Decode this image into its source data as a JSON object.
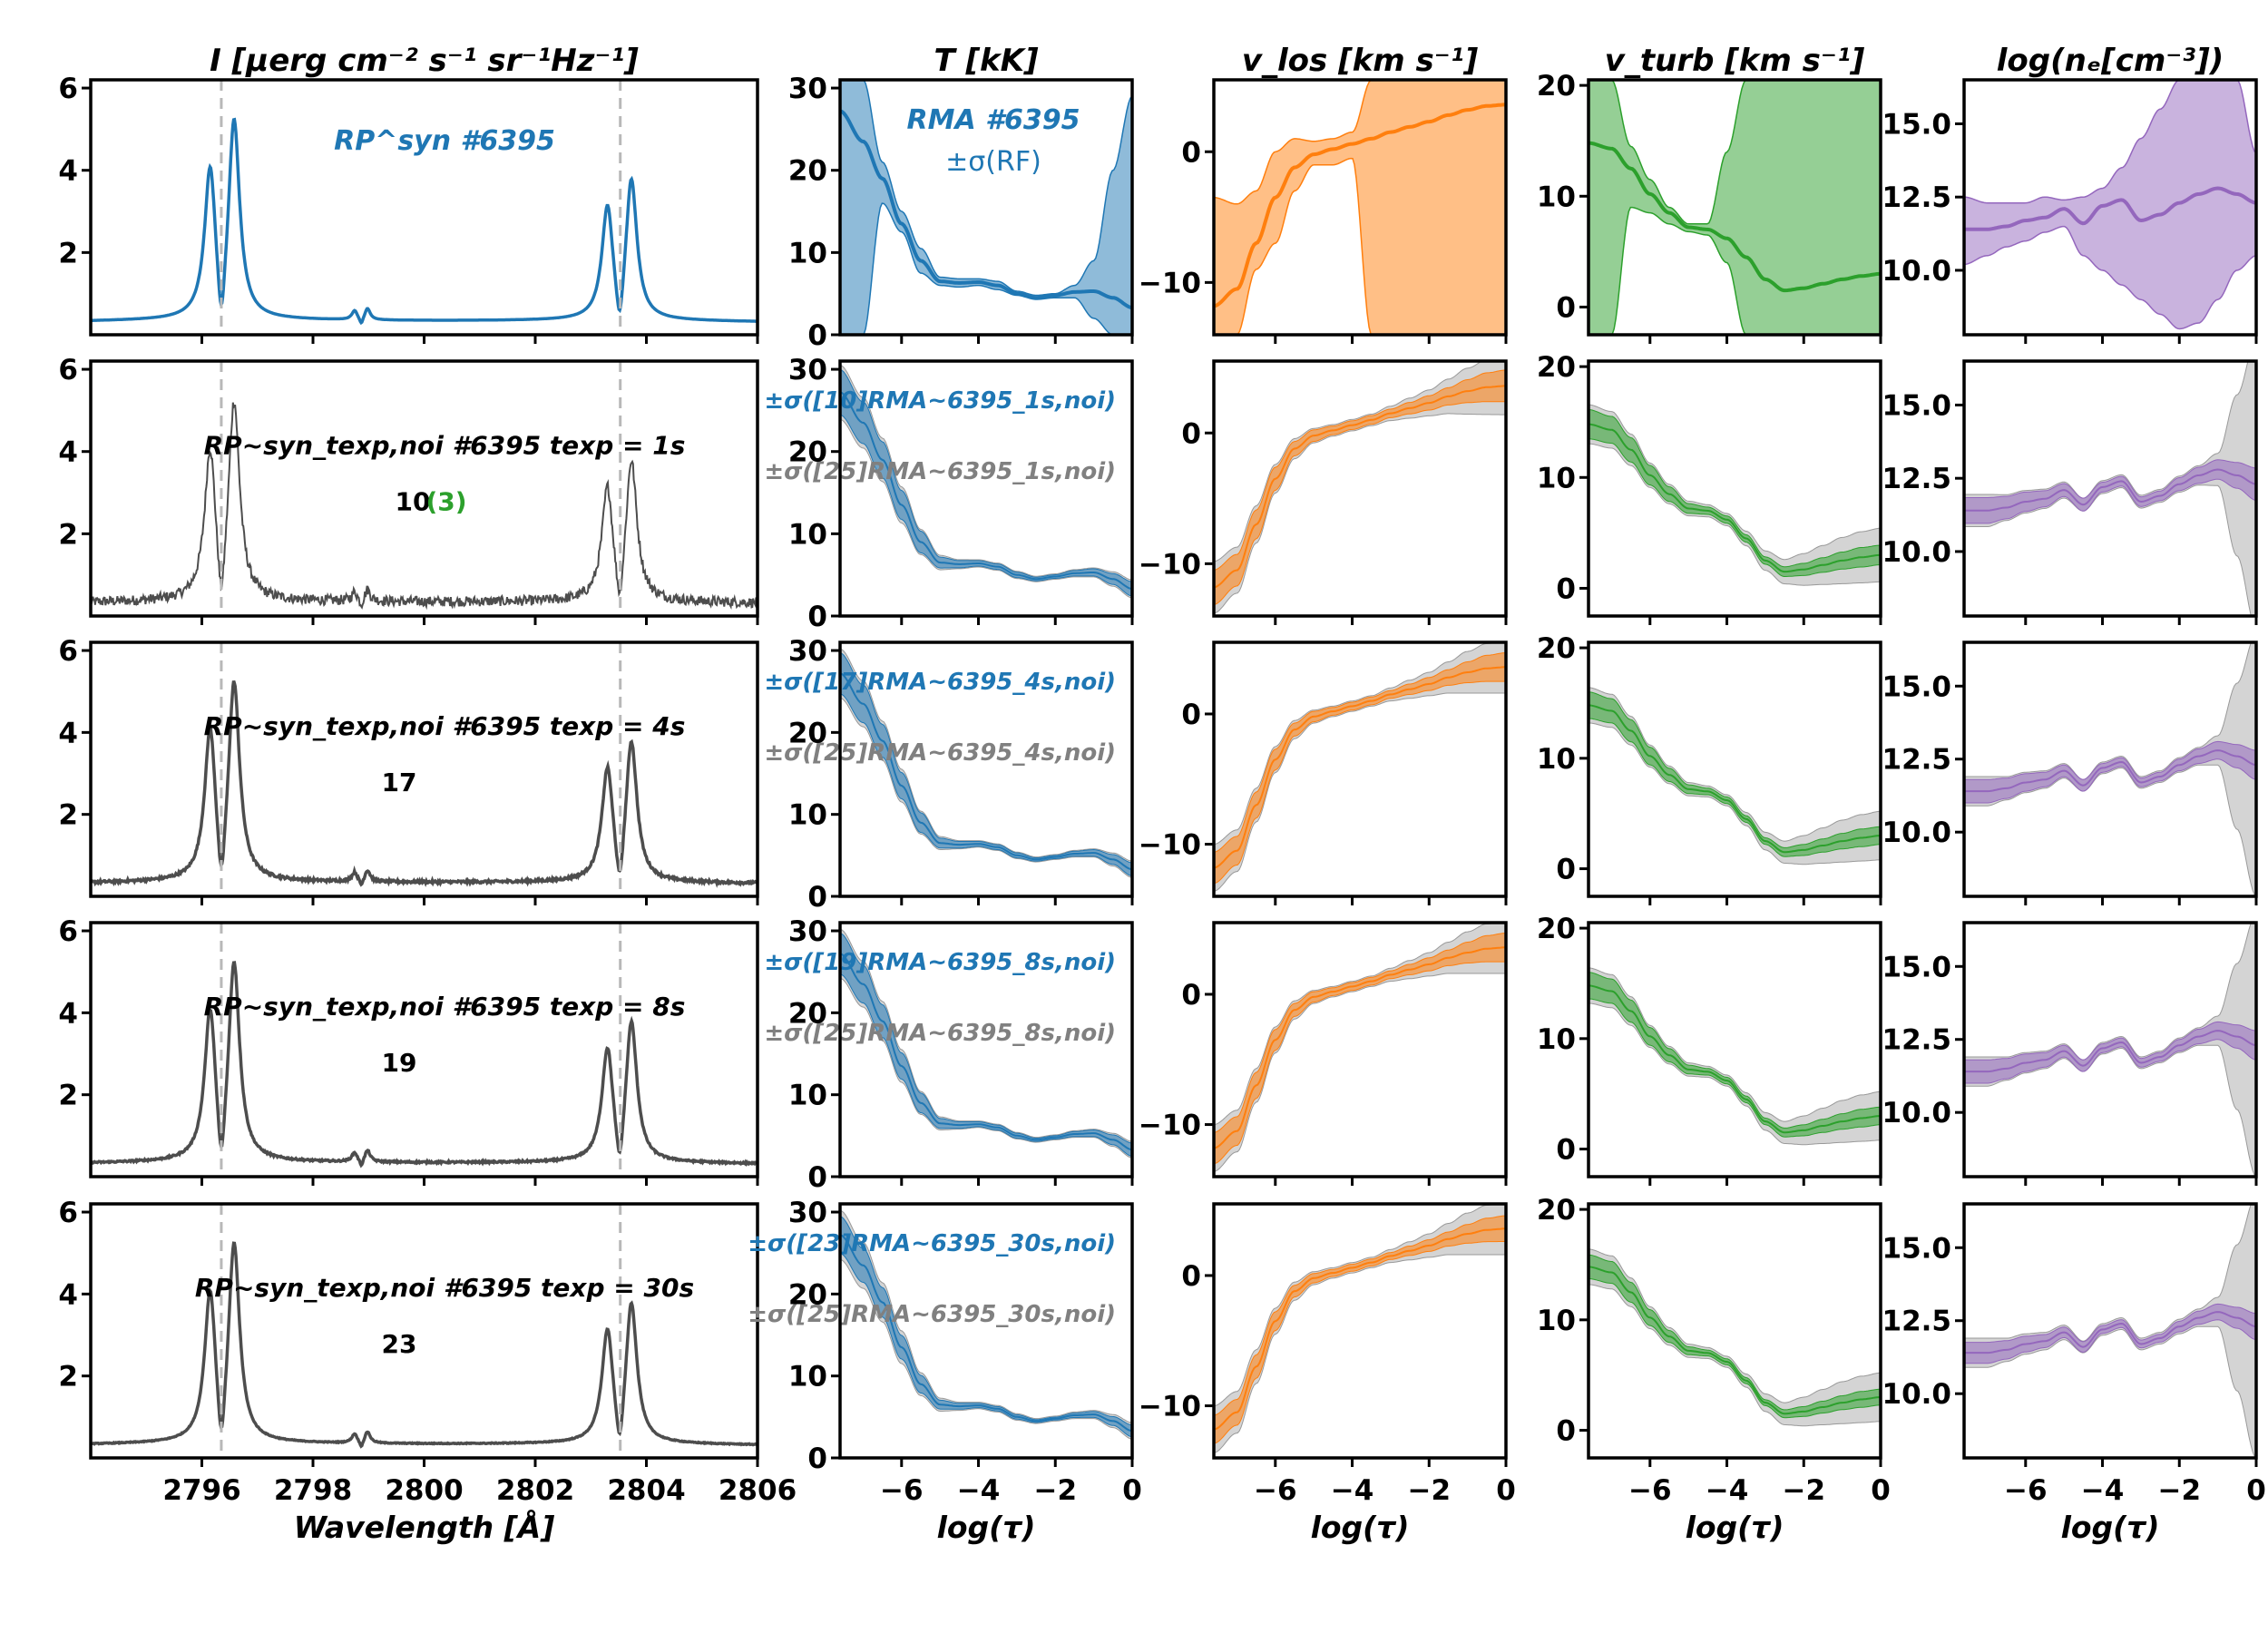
{
  "chart_data": {
    "type": "line",
    "description_layout": "5 rows x 5 columns of line plots with shaded uncertainty bands",
    "colors": {
      "blue": "#1f77b4",
      "orange": "#ff7f0e",
      "green": "#2ca02c",
      "purple": "#9467bd",
      "gray": "#4d4d4d",
      "band_gray": "#b0b0b0",
      "label_gray": "#808080",
      "dash_gray": "#b8b8b8"
    },
    "columns": [
      {
        "key": "I",
        "title": "I [μerg cm⁻² s⁻¹ sr⁻¹Hz⁻¹]",
        "xlabel": "Wavelength [Å]",
        "xlim": [
          2794,
          2806
        ],
        "ylim": [
          0,
          6.2
        ],
        "xticks": [
          2796,
          2798,
          2800,
          2802,
          2804,
          2806
        ],
        "xtick_labels": [
          "2796",
          "2798",
          "2800",
          "2802",
          "2804",
          "2806"
        ],
        "yticks": [
          2,
          4,
          6
        ],
        "ytick_labels": [
          "2",
          "4",
          "6"
        ],
        "dashed_lines_x": [
          2796.35,
          2803.53
        ]
      },
      {
        "key": "T",
        "title": "T [kK]",
        "xlabel": "log(τ)",
        "xlim": [
          -7.6,
          0
        ],
        "ylim": [
          0,
          31
        ],
        "xticks": [
          -6,
          -4,
          -2,
          0
        ],
        "xtick_labels": [
          "−6",
          "−4",
          "−2",
          "0"
        ],
        "yticks": [
          0,
          10,
          20,
          30
        ],
        "ytick_labels": [
          "0",
          "10",
          "20",
          "30"
        ]
      },
      {
        "key": "vlos",
        "title": "v_los [km s⁻¹]",
        "xlabel": "log(τ)",
        "xlim": [
          -7.6,
          0
        ],
        "ylim": [
          -14,
          5.5
        ],
        "xticks": [
          -6,
          -4,
          -2,
          0
        ],
        "xtick_labels": [
          "−6",
          "−4",
          "−2",
          "0"
        ],
        "yticks": [
          -10,
          0
        ],
        "ytick_labels": [
          "−10",
          "0"
        ]
      },
      {
        "key": "vturb",
        "title": "v_turb [km s⁻¹]",
        "xlabel": "log(τ)",
        "xlim": [
          -7.6,
          0
        ],
        "ylim": [
          -2.5,
          20.5
        ],
        "xticks": [
          -6,
          -4,
          -2,
          0
        ],
        "xtick_labels": [
          "−6",
          "−4",
          "−2",
          "0"
        ],
        "yticks": [
          0,
          10,
          20
        ],
        "ytick_labels": [
          "0",
          "10",
          "20"
        ]
      },
      {
        "key": "ne",
        "title": "log(nₑ[cm⁻³])",
        "xlabel": "log(τ)",
        "xlim": [
          -7.6,
          0
        ],
        "ylim": [
          7.8,
          16.5
        ],
        "xticks": [
          -6,
          -4,
          -2,
          0
        ],
        "xtick_labels": [
          "−6",
          "−4",
          "−2",
          "0"
        ],
        "yticks": [
          10.0,
          12.5,
          15.0
        ],
        "ytick_labels": [
          "10.0",
          "12.5",
          "15.0"
        ]
      }
    ],
    "rows": [
      {
        "profile_label": "RP^syn #6395",
        "count": "",
        "count_extra": "",
        "t_label": "RMA #6395",
        "t_label2": "±σ(RF)",
        "noisy": false
      },
      {
        "profile_label": "RP~syn_texp,noi #6395 texp = 1s",
        "count": "10",
        "count_extra": "(3)",
        "t_label": "±σ([10]RMA~6395_1s,noi)",
        "t_label2": "±σ([25]RMA~6395_1s,noi)",
        "noisy": true,
        "noise_level": 0.12
      },
      {
        "profile_label": "RP~syn_texp,noi #6395 texp = 4s",
        "count": "17",
        "count_extra": "",
        "t_label": "±σ([17]RMA~6395_4s,noi)",
        "t_label2": "±σ([25]RMA~6395_4s,noi)",
        "noisy": true,
        "noise_level": 0.03
      },
      {
        "profile_label": "RP~syn_texp,noi #6395 texp = 8s",
        "count": "19",
        "count_extra": "",
        "t_label": "±σ([19]RMA~6395_8s,noi)",
        "t_label2": "±σ([25]RMA~6395_8s,noi)",
        "noisy": true,
        "noise_level": 0.02
      },
      {
        "profile_label": "RP~syn_texp,noi #6395 texp = 30s",
        "count": "23",
        "count_extra": "",
        "t_label": "±σ([23]RMA~6395_30s,noi)",
        "t_label2": "±σ([25]RMA~6395_30s,noi)",
        "noisy": true,
        "noise_level": 0.01
      }
    ],
    "spectrum": {
      "continuum": 0.25,
      "lines": [
        {
          "center": 2796.15,
          "amp": 3.6,
          "width": 0.12
        },
        {
          "center": 2796.58,
          "amp": 4.8,
          "width": 0.12
        },
        {
          "center": 2796.35,
          "amp": -1.6,
          "width": 0.08
        },
        {
          "center": 2803.3,
          "amp": 2.7,
          "width": 0.12
        },
        {
          "center": 2803.73,
          "amp": 3.4,
          "width": 0.12
        },
        {
          "center": 2803.52,
          "amp": -1.2,
          "width": 0.08
        },
        {
          "center": 2798.75,
          "amp": 0.22,
          "width": 0.06
        },
        {
          "center": 2798.98,
          "amp": 0.28,
          "width": 0.06
        },
        {
          "center": 2798.87,
          "amp": -0.18,
          "width": 0.04
        }
      ],
      "wings": [
        {
          "center": 2796.35,
          "amp": 0.09,
          "width": 4.0
        },
        {
          "center": 2803.53,
          "amp": 0.07,
          "width": 4.0
        }
      ]
    },
    "profiles": {
      "tau": [
        -7.6,
        -7.0,
        -6.5,
        -6.0,
        -5.5,
        -5.0,
        -4.5,
        -4.0,
        -3.5,
        -3.0,
        -2.5,
        -2.0,
        -1.5,
        -1.0,
        -0.5,
        0.0
      ],
      "T": {
        "values": [
          27.2,
          23.5,
          19.0,
          13.5,
          9.0,
          6.5,
          6.3,
          6.4,
          6.0,
          5.0,
          4.5,
          4.8,
          5.2,
          5.3,
          4.5,
          3.3
        ],
        "row1_band_lo": [
          0,
          0,
          16.0,
          12.5,
          7.5,
          6.0,
          5.8,
          6.0,
          5.5,
          4.8,
          4.3,
          4.5,
          4.5,
          2.0,
          0,
          0
        ],
        "row1_band_hi": [
          31,
          31,
          21.0,
          15.0,
          10.5,
          7.0,
          6.8,
          6.8,
          6.5,
          5.3,
          4.8,
          5.0,
          6.0,
          9.0,
          20.0,
          29.0
        ],
        "band_narrow": [
          2.5,
          2.3,
          2.0,
          1.6,
          1.2,
          0.6,
          0.4,
          0.3,
          0.3,
          0.3,
          0.2,
          0.2,
          0.3,
          0.4,
          0.6,
          0.8
        ],
        "band_wide": [
          3.0,
          2.8,
          2.4,
          2.0,
          1.4,
          0.8,
          0.5,
          0.4,
          0.4,
          0.4,
          0.3,
          0.3,
          0.4,
          0.5,
          0.8,
          1.0
        ]
      },
      "vlos": {
        "values": [
          -11.8,
          -10.5,
          -7.0,
          -3.5,
          -1.2,
          -0.2,
          0.2,
          0.6,
          1.0,
          1.5,
          1.9,
          2.3,
          2.8,
          3.2,
          3.5,
          3.6
        ],
        "row1_band_lo": [
          -14,
          -14,
          -9.0,
          -7.0,
          -3.0,
          -1.0,
          -1.0,
          -0.5,
          -14,
          -14,
          -14,
          -14,
          -14,
          -14,
          -14,
          -14
        ],
        "row1_band_hi": [
          -3.5,
          -4.0,
          -3.0,
          0.0,
          1.0,
          0.8,
          1.0,
          1.5,
          5.5,
          5.5,
          5.5,
          5.5,
          5.5,
          5.5,
          5.5,
          5.5
        ],
        "band_narrow": [
          1.2,
          1.1,
          1.0,
          0.8,
          0.5,
          0.4,
          0.3,
          0.3,
          0.3,
          0.3,
          0.4,
          0.5,
          0.6,
          0.8,
          1.0,
          1.1
        ],
        "band_wide": [
          1.8,
          1.6,
          1.3,
          1.0,
          0.7,
          0.5,
          0.4,
          0.4,
          0.4,
          0.5,
          0.7,
          0.9,
          1.2,
          1.6,
          1.9,
          2.0
        ]
      },
      "vturb": {
        "values": [
          14.8,
          14.3,
          12.5,
          10.2,
          8.5,
          7.2,
          7.0,
          6.2,
          4.5,
          2.5,
          1.5,
          1.7,
          2.1,
          2.5,
          2.8,
          3.0
        ],
        "row1_band_lo": [
          -2.5,
          -2.5,
          9.0,
          8.5,
          7.5,
          6.8,
          6.5,
          4.0,
          -2.5,
          -2.5,
          -2.5,
          -2.5,
          -2.5,
          -2.5,
          -2.5,
          -2.5
        ],
        "row1_band_hi": [
          20.5,
          20.5,
          14.5,
          11.5,
          9.0,
          7.5,
          7.5,
          14.0,
          20.5,
          20.5,
          20.5,
          20.5,
          20.5,
          20.5,
          20.5,
          20.5
        ],
        "band_narrow": [
          1.2,
          1.1,
          1.0,
          0.8,
          0.6,
          0.4,
          0.3,
          0.3,
          0.3,
          0.3,
          0.4,
          0.5,
          0.6,
          0.7,
          0.8,
          0.8
        ],
        "band_wide": [
          1.6,
          1.5,
          1.3,
          1.0,
          0.8,
          0.6,
          0.5,
          0.5,
          0.6,
          0.8,
          1.0,
          1.3,
          1.6,
          1.9,
          2.1,
          2.2
        ]
      },
      "ne": {
        "values": [
          11.4,
          11.4,
          11.5,
          11.7,
          11.8,
          12.1,
          11.6,
          12.2,
          12.4,
          11.7,
          11.9,
          12.3,
          12.6,
          12.8,
          12.6,
          12.3
        ],
        "row1_band_lo": [
          10.2,
          10.5,
          10.8,
          11.0,
          11.3,
          11.5,
          10.5,
          10.0,
          9.5,
          9.0,
          8.5,
          8.0,
          8.2,
          9.0,
          10.0,
          10.5
        ],
        "row1_band_hi": [
          12.5,
          12.3,
          12.3,
          12.3,
          12.5,
          12.4,
          12.5,
          12.8,
          13.5,
          14.5,
          15.5,
          16.5,
          16.5,
          16.5,
          16.5,
          14.0
        ],
        "band_narrow": [
          0.4,
          0.4,
          0.35,
          0.3,
          0.25,
          0.2,
          0.2,
          0.15,
          0.15,
          0.15,
          0.15,
          0.2,
          0.25,
          0.3,
          0.4,
          0.5
        ],
        "band_wide": [
          0.5,
          0.5,
          0.4,
          0.35,
          0.3,
          0.25,
          0.2,
          0.2,
          0.2,
          0.2,
          0.2,
          0.25,
          0.3,
          0.5,
          2.5,
          4.5
        ]
      }
    }
  }
}
